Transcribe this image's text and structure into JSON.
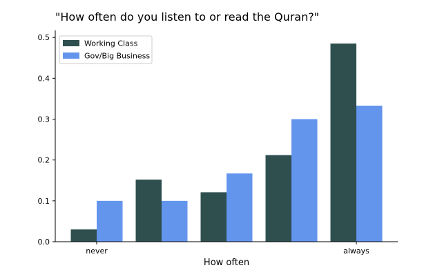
{
  "chart_data": {
    "type": "bar",
    "title": "\"How often do you listen to or read the Quran?\"",
    "xlabel": "How often",
    "ylabel": "",
    "categories": [
      "never",
      "",
      "",
      "",
      "always"
    ],
    "series": [
      {
        "name": "Working Class",
        "color": "#2f4f4f",
        "values": [
          0.03,
          0.152,
          0.121,
          0.212,
          0.485
        ]
      },
      {
        "name": "Gov/Big Business",
        "color": "#6495ed",
        "values": [
          0.1,
          0.1,
          0.167,
          0.3,
          0.333
        ]
      }
    ],
    "ylim": [
      0,
      0.5
    ],
    "yticks": [
      {
        "value": 0.0,
        "label": "0.0"
      },
      {
        "value": 0.1,
        "label": "0.1"
      },
      {
        "value": 0.2,
        "label": "0.2"
      },
      {
        "value": 0.3,
        "label": "0.3"
      },
      {
        "value": 0.4,
        "label": "0.4"
      },
      {
        "value": 0.5,
        "label": "0.5"
      }
    ],
    "grid": false,
    "legend": "top-left"
  }
}
